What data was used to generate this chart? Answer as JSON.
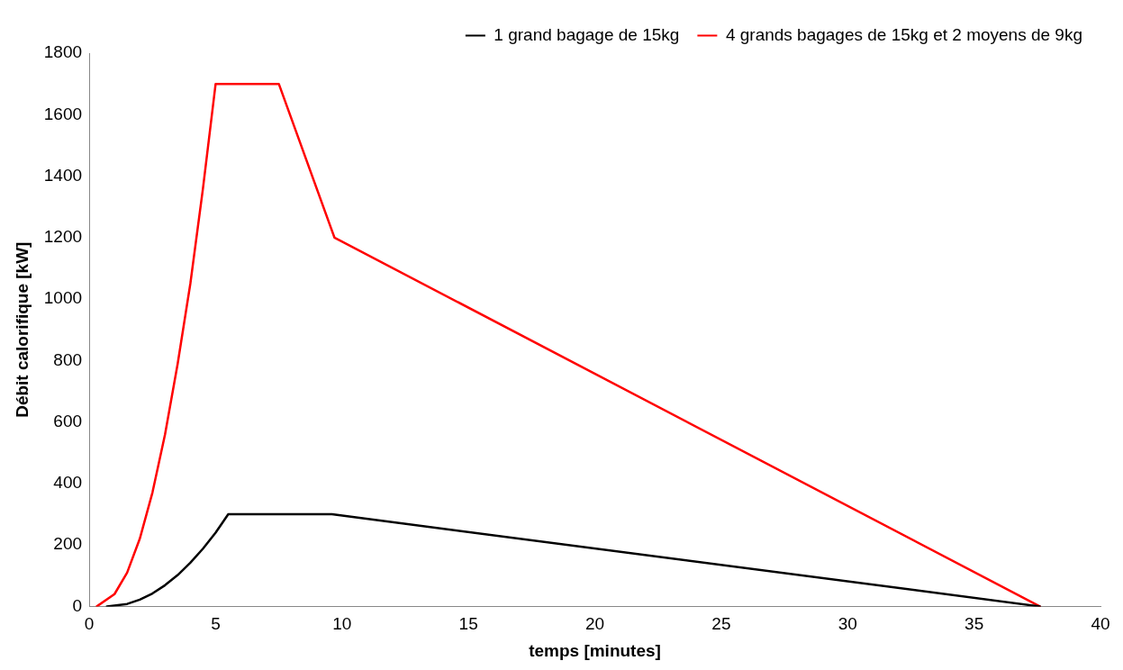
{
  "chart_data": {
    "type": "line",
    "xlabel": "temps [minutes]",
    "ylabel": "Débit calorifique [kW]",
    "xlim": [
      0,
      40
    ],
    "xticks": [
      0,
      5,
      10,
      15,
      20,
      25,
      30,
      35,
      40
    ],
    "ylim": [
      0,
      1800
    ],
    "yticks": [
      0,
      200,
      400,
      600,
      800,
      1000,
      1200,
      1400,
      1600,
      1800
    ],
    "grid": false,
    "legend": "top right",
    "marker": "none",
    "line_style": "solid",
    "series": [
      {
        "name": "1 grand bagage de 15kg",
        "color": "#000000",
        "x": [
          0.7,
          1.5,
          2,
          2.5,
          3,
          3.5,
          4,
          4.5,
          5,
          5.5,
          9.6,
          37.6
        ],
        "values": [
          0,
          8,
          22,
          42,
          69,
          102,
          142,
          188,
          240,
          300,
          300,
          0
        ]
      },
      {
        "name": "4 grands bagages de 15kg et 2 moyens de 9kg",
        "color": "#ff0000",
        "x": [
          0.3,
          1,
          1.5,
          2,
          2.5,
          3,
          3.5,
          4,
          4.5,
          5,
          7.5,
          9.7,
          37.6
        ],
        "values": [
          0,
          40,
          110,
          220,
          370,
          560,
          790,
          1050,
          1360,
          1700,
          1700,
          1200,
          0
        ]
      }
    ]
  }
}
